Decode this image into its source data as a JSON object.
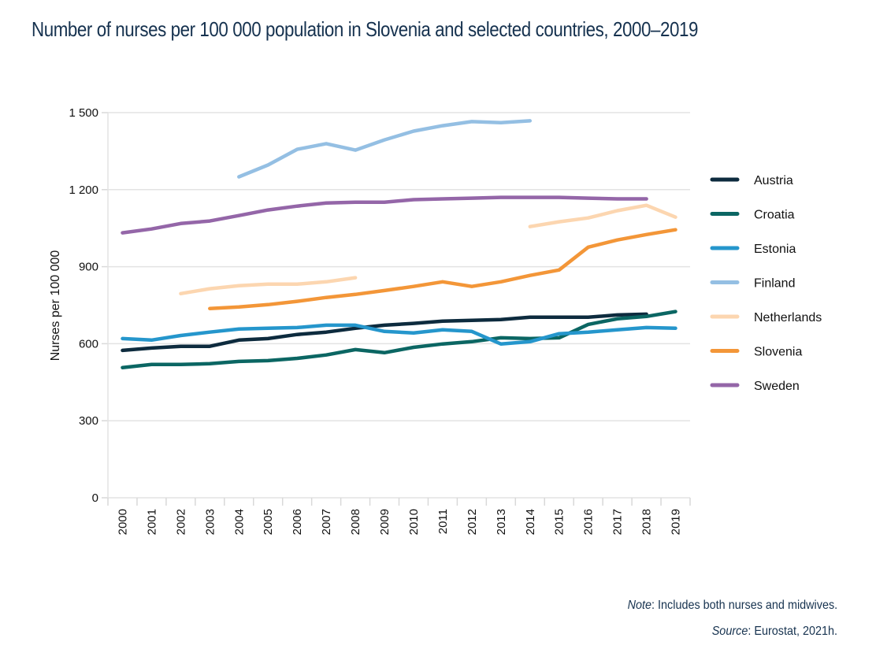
{
  "title": "Number of nurses per 100 000 population in Slovenia and selected countries, 2000–2019",
  "footer": {
    "note_label": "Note",
    "note_text": ": Includes both nurses and midwives.",
    "source_label": "Source",
    "source_text": ": Eurostat, 2021h."
  },
  "chart_data": {
    "type": "line",
    "title": "Number of nurses per 100 000 population in Slovenia and selected countries, 2000–2019",
    "xlabel": "",
    "ylabel": "Nurses per 100 000",
    "ylim": [
      0,
      1500
    ],
    "yticks": [
      0,
      300,
      600,
      900,
      1200,
      1500
    ],
    "ytick_labels": [
      "0",
      "300",
      "600",
      "900",
      "1 200",
      "1 500"
    ],
    "grid": true,
    "legend_position": "right",
    "categories": [
      "2000",
      "2001",
      "2002",
      "2003",
      "2004",
      "2005",
      "2006",
      "2007",
      "2008",
      "2009",
      "2010",
      "2011",
      "2012",
      "2013",
      "2014",
      "2015",
      "2016",
      "2017",
      "2018",
      "2019"
    ],
    "series": [
      {
        "name": "Austria",
        "color": "#0d2b3e",
        "values": [
          574,
          583,
          590,
          590,
          614,
          620,
          636,
          645,
          660,
          672,
          679,
          688,
          691,
          694,
          703,
          703,
          703,
          712,
          715,
          null
        ]
      },
      {
        "name": "Croatia",
        "color": "#0b6663",
        "values": [
          507,
          519,
          519,
          522,
          531,
          534,
          543,
          556,
          577,
          565,
          586,
          599,
          608,
          623,
          620,
          623,
          675,
          697,
          706,
          725
        ]
      },
      {
        "name": "Estonia",
        "color": "#2596cc",
        "values": [
          620,
          614,
          632,
          645,
          657,
          660,
          663,
          672,
          672,
          648,
          642,
          654,
          648,
          599,
          608,
          639,
          645,
          654,
          663,
          660
        ]
      },
      {
        "name": "Finland",
        "color": "#94bfe3",
        "values": [
          null,
          null,
          null,
          null,
          1250,
          1296,
          1357,
          1379,
          1354,
          1394,
          1428,
          1449,
          1465,
          1461,
          1468,
          null,
          null,
          null,
          null,
          null
        ]
      },
      {
        "name": "Netherlands",
        "color": "#fcd6b0",
        "values": [
          null,
          null,
          795,
          814,
          826,
          832,
          832,
          841,
          857,
          null,
          null,
          null,
          null,
          null,
          1056,
          1075,
          1090,
          1118,
          1139,
          1093
        ]
      },
      {
        "name": "Slovenia",
        "color": "#f39638",
        "values": [
          null,
          null,
          null,
          737,
          743,
          752,
          765,
          780,
          792,
          807,
          823,
          841,
          823,
          841,
          866,
          887,
          976,
          1004,
          1025,
          1044
        ]
      },
      {
        "name": "Sweden",
        "color": "#9466a8",
        "values": [
          1032,
          1047,
          1068,
          1078,
          1099,
          1121,
          1136,
          1148,
          1151,
          1151,
          1161,
          1164,
          1167,
          1170,
          1170,
          1170,
          1167,
          1164,
          1164,
          null
        ]
      }
    ]
  }
}
